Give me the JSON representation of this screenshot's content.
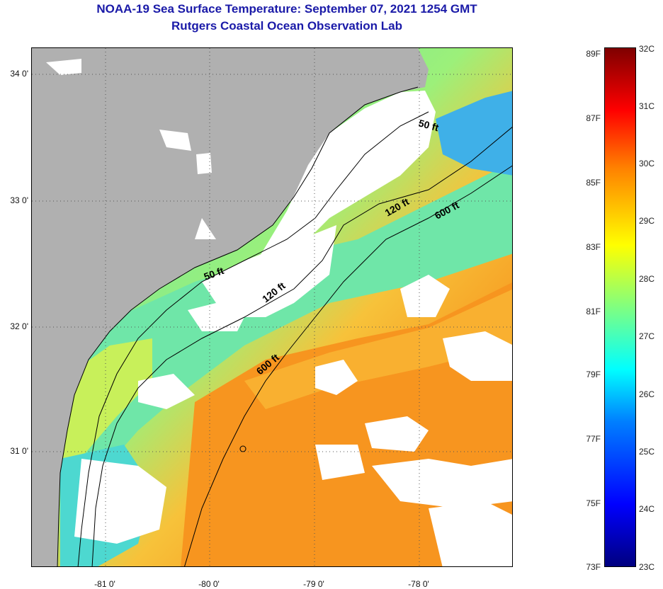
{
  "title": {
    "line1": "NOAA-19 Sea Surface Temperature:  September 07, 2021 1254 GMT",
    "line2": "Rutgers Coastal Ocean Observation Lab"
  },
  "map": {
    "lon_labels": [
      "-81 0'",
      "-80 0'",
      "-79 0'",
      "-78 0'"
    ],
    "lat_labels": [
      "34 0'",
      "33 0'",
      "32 0'",
      "31 0'"
    ],
    "contours": {
      "c50_a": "50 ft",
      "c50_b": "50 ft",
      "c120_a": "120 ft",
      "c120_b": "120 ft",
      "c600_a": "600 ft",
      "c600_b": "600 ft"
    },
    "colors": {
      "land": "#b0b0b0",
      "cloud": "#ffffff",
      "warm": "#f7941d",
      "cool": "#3de0c0"
    }
  },
  "colorbar": {
    "fahrenheit": [
      "89F",
      "87F",
      "85F",
      "83F",
      "81F",
      "79F",
      "77F",
      "75F",
      "73F"
    ],
    "celsius": [
      "32C",
      "31C",
      "30C",
      "29C",
      "28C",
      "27C",
      "26C",
      "25C",
      "24C",
      "23C"
    ]
  }
}
